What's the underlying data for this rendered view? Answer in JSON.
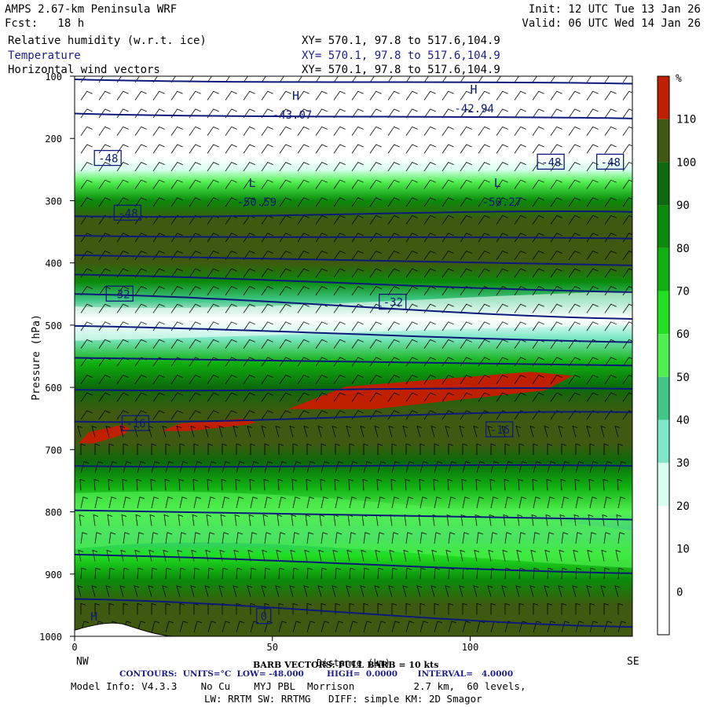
{
  "header": {
    "title": "AMPS 2.67-km Peninsula WRF",
    "init": "Init: 12 UTC Tue 13 Jan 26",
    "fcst": "Fcst:   18 h",
    "valid": "Valid: 06 UTC Wed 14 Jan 26",
    "fields": [
      {
        "name": "Relative humidity (w.r.t. ice)",
        "xy": "XY= 570.1, 97.8 to 517.6,104.9",
        "color": "#000000"
      },
      {
        "name": "Temperature",
        "xy": "XY= 570.1, 97.8 to 517.6,104.9",
        "color": "#1c1c8c"
      },
      {
        "name": "Horizontal wind vectors",
        "xy": "XY= 570.1, 97.8 to 517.6,104.9",
        "color": "#000000"
      }
    ]
  },
  "chart_data": {
    "type": "heatmap",
    "ylabel": "Pressure (hPa)",
    "xlabel": "Distance (km)",
    "x_ticks": [
      0,
      50,
      100
    ],
    "x_range": [
      0,
      141
    ],
    "y_ticks": [
      100,
      200,
      300,
      400,
      500,
      600,
      700,
      800,
      900,
      1000
    ],
    "y_range": [
      1000,
      100
    ],
    "x_end_labels": {
      "left": "NW",
      "right": "SE"
    },
    "colorbar": {
      "unit": "%",
      "levels": [
        0,
        10,
        20,
        30,
        40,
        50,
        60,
        70,
        80,
        90,
        100,
        110
      ],
      "colors": [
        "#ffffff",
        "#ffffff",
        "#ffffff",
        "#d8fff0",
        "#7fe8c8",
        "#40c888",
        "#50f050",
        "#20e020",
        "#10b010",
        "#0a8a0a",
        "#0b6a0b",
        "#3f5a10",
        "#c02000"
      ]
    },
    "rh_bands": [
      {
        "p": 100,
        "c": 0
      },
      {
        "p": 230,
        "c": 0
      },
      {
        "p": 250,
        "c": 3
      },
      {
        "p": 270,
        "c": 6
      },
      {
        "p": 300,
        "c": 9
      },
      {
        "p": 330,
        "c": 11
      },
      {
        "p": 360,
        "c": 11
      },
      {
        "p": 400,
        "c": 11
      },
      {
        "p": 430,
        "c": 9
      },
      {
        "p": 460,
        "c": 5
      },
      {
        "p": 490,
        "c": 2
      },
      {
        "p": 520,
        "c": 4
      },
      {
        "p": 560,
        "c": 8
      },
      {
        "p": 600,
        "c": 10
      },
      {
        "p": 640,
        "c": 11
      },
      {
        "p": 690,
        "c": 11
      },
      {
        "p": 720,
        "c": 10
      },
      {
        "p": 760,
        "c": 8
      },
      {
        "p": 800,
        "c": 6
      },
      {
        "p": 840,
        "c": 5
      },
      {
        "p": 870,
        "c": 7
      },
      {
        "p": 910,
        "c": 9
      },
      {
        "p": 950,
        "c": 11
      },
      {
        "p": 1000,
        "c": 11
      }
    ],
    "rh_saturation_patches": [
      {
        "x": [
          54,
          126
        ],
        "p": [
          575,
          635
        ]
      },
      {
        "x": [
          1,
          14
        ],
        "p": [
          660,
          690
        ]
      },
      {
        "x": [
          22,
          46
        ],
        "p": [
          650,
          670
        ]
      }
    ],
    "temperature_contours": [
      {
        "value": -48,
        "p_left": 232,
        "p_right": 240
      },
      {
        "value": -48,
        "p_left": 325,
        "p_right": 318
      },
      {
        "value": -32,
        "p_left": 450,
        "p_right": 490
      },
      {
        "value": -16,
        "p_left": 655,
        "p_right": 640
      },
      {
        "value": 0,
        "p_left": 940,
        "p_right": 985
      }
    ],
    "temperature_labels": [
      "-48",
      "-48",
      "-48",
      "-48",
      "-32",
      "-32",
      "-16",
      "-16",
      "0"
    ],
    "extrema": [
      {
        "type": "H",
        "value": "-43.07"
      },
      {
        "type": "H",
        "value": "-42.94"
      },
      {
        "type": "L",
        "value": "-50.59"
      },
      {
        "type": "L",
        "value": "-50.27"
      },
      {
        "type": "H",
        "value": ""
      }
    ]
  },
  "footer": {
    "barb": "BARB VECTORS: FULL BARB = 10 kts",
    "contours": "CONTOURS:  UNITS=°C  LOW= -48.000        HIGH=  0.0000       INTERVAL=   4.0000",
    "model1": "Model Info: V4.3.3    No Cu    MYJ PBL  Morrison          2.7 km,  60 levels,",
    "model2": "LW: RRTM SW: RRTMG   DIFF: simple KM: 2D Smagor"
  }
}
